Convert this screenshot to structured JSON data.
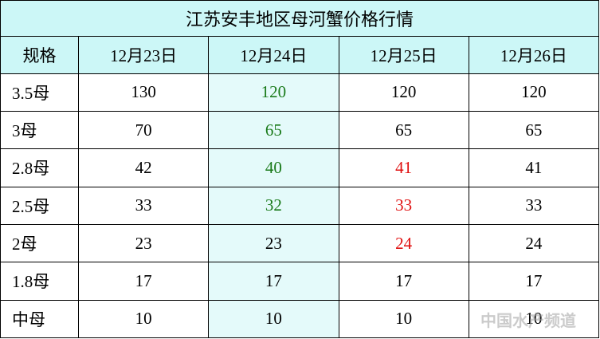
{
  "title": "江苏安丰地区母河蟹价格行情",
  "table": {
    "header": [
      "规格",
      "12月23日",
      "12月24日",
      "12月25日",
      "12月26日"
    ],
    "rows": [
      [
        "3.5母",
        "130",
        "120",
        "120",
        "120"
      ],
      [
        "3母",
        "70",
        "65",
        "65",
        "65"
      ],
      [
        "2.8母",
        "42",
        "40",
        "41",
        "41"
      ],
      [
        "2.5母",
        "33",
        "32",
        "33",
        "33"
      ],
      [
        "2母",
        "23",
        "23",
        "24",
        "24"
      ],
      [
        "1.8母",
        "17",
        "17",
        "17",
        "17"
      ],
      [
        "中母",
        "10",
        "10",
        "10",
        "10"
      ]
    ],
    "text_colors": [
      [
        null,
        null,
        "#1a7a1a",
        null,
        null
      ],
      [
        null,
        null,
        "#1a7a1a",
        null,
        null
      ],
      [
        null,
        null,
        "#1a7a1a",
        "#e01010",
        null
      ],
      [
        null,
        null,
        "#1a7a1a",
        "#e01010",
        null
      ],
      [
        null,
        null,
        null,
        "#e01010",
        null
      ],
      [
        null,
        null,
        null,
        null,
        null
      ],
      [
        null,
        null,
        null,
        null,
        null
      ]
    ]
  },
  "watermark": "中国水产频道"
}
